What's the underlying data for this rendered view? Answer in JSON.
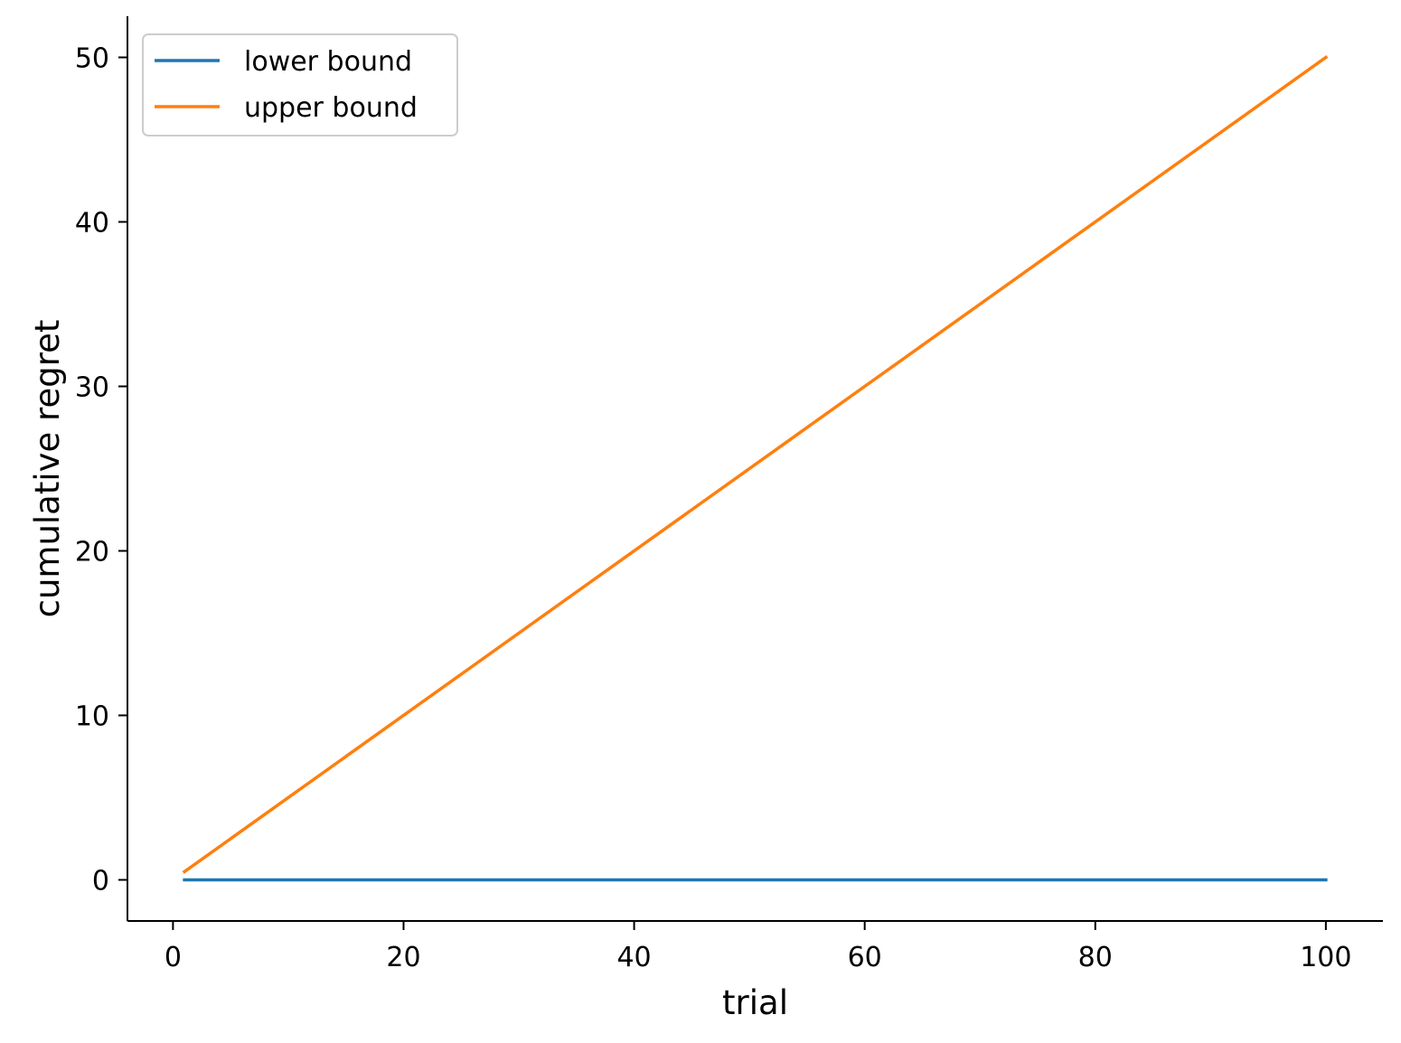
{
  "chart_data": {
    "type": "line",
    "title": "",
    "xlabel": "trial",
    "ylabel": "cumulative regret",
    "xlim": [
      -3.95,
      104.95
    ],
    "ylim": [
      -2.5,
      52.5
    ],
    "xticks": [
      0,
      20,
      40,
      60,
      80,
      100
    ],
    "yticks": [
      0,
      10,
      20,
      30,
      40,
      50
    ],
    "xtick_labels": [
      "0",
      "20",
      "40",
      "60",
      "80",
      "100"
    ],
    "ytick_labels": [
      "0",
      "10",
      "20",
      "30",
      "40",
      "50"
    ],
    "grid": false,
    "legend_position": "upper-left",
    "spines": "left-bottom",
    "series": [
      {
        "name": "lower bound",
        "color": "#1f77b4",
        "x": [
          1,
          100
        ],
        "y": [
          0,
          0
        ]
      },
      {
        "name": "upper bound",
        "color": "#ff7f0e",
        "x": [
          1,
          100
        ],
        "y": [
          0.5,
          50
        ]
      }
    ]
  }
}
